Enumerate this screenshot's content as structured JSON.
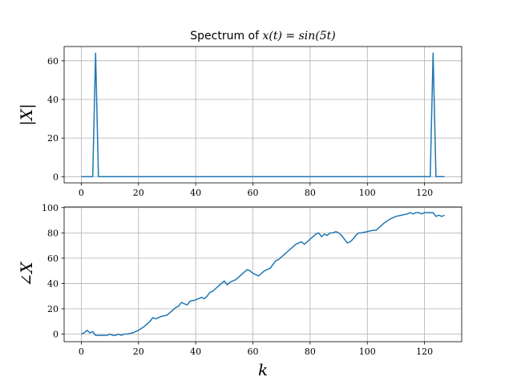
{
  "chart_data": [
    {
      "type": "line",
      "title_prefix": "Spectrum of ",
      "title_math": "x(t) = sin(5t)",
      "ylabel": "|X|",
      "xlabel": "",
      "xlim": [
        -6,
        133
      ],
      "ylim": [
        -3.2,
        67.4
      ],
      "xticks": [
        0,
        20,
        40,
        60,
        80,
        100,
        120
      ],
      "yticks": [
        0,
        20,
        40,
        60
      ],
      "grid": true,
      "series": [
        {
          "color": "#1f77b4",
          "x": [
            0,
            1,
            2,
            3,
            4,
            5,
            6,
            7,
            8,
            121,
            122,
            123,
            124,
            125,
            126,
            127
          ],
          "y": [
            0,
            0,
            0,
            0,
            0,
            64,
            0,
            0,
            0,
            0,
            0,
            64,
            0,
            0,
            0,
            0
          ]
        }
      ]
    },
    {
      "type": "line",
      "title": "",
      "ylabel": "∠X",
      "xlabel": "k",
      "xlim": [
        -6,
        133
      ],
      "ylim": [
        -6,
        100.5
      ],
      "xticks": [
        0,
        20,
        40,
        60,
        80,
        100,
        120
      ],
      "yticks": [
        0,
        20,
        40,
        60,
        80,
        100
      ],
      "grid": true,
      "series": [
        {
          "color": "#1f77b4",
          "x": [
            0,
            1,
            2,
            3,
            4,
            5,
            6,
            7,
            8,
            9,
            10,
            11,
            12,
            13,
            14,
            15,
            16,
            18,
            20,
            22,
            24,
            25,
            26,
            28,
            30,
            31,
            32,
            33,
            34,
            35,
            36,
            37,
            38,
            40,
            41,
            42,
            43,
            44,
            45,
            46,
            47,
            48,
            49,
            50,
            51,
            52,
            54,
            55,
            56,
            57,
            58,
            59,
            60,
            62,
            64,
            65,
            66,
            67,
            68,
            69,
            70,
            71,
            72,
            73,
            74,
            75,
            76,
            77,
            78,
            79,
            80,
            81,
            82,
            83,
            84,
            85,
            86,
            87,
            88,
            89,
            90,
            91,
            92,
            93,
            94,
            95,
            96,
            97,
            98,
            100,
            102,
            103,
            104,
            106,
            108,
            110,
            112,
            114,
            115,
            116,
            117,
            118,
            119,
            120,
            121,
            122,
            123,
            124,
            125,
            126,
            127
          ],
          "y": [
            0,
            1,
            3,
            1,
            2,
            -1,
            -1,
            -1,
            -1,
            -1,
            0,
            -1,
            -1,
            0,
            -1,
            0,
            0,
            1,
            3,
            6,
            10,
            13,
            12,
            14,
            15,
            17,
            19,
            21,
            22,
            25,
            24,
            23,
            26,
            27,
            28,
            29,
            28,
            30,
            33,
            34,
            36,
            38,
            40,
            42,
            39,
            41,
            43,
            45,
            47,
            49,
            51,
            50,
            48,
            46,
            50,
            51,
            52,
            55,
            58,
            59,
            61,
            63,
            65,
            67,
            69,
            71,
            72,
            73,
            71,
            73,
            75,
            77,
            79,
            80,
            77,
            79,
            78,
            80,
            80,
            81,
            80,
            78,
            75,
            72,
            73,
            75,
            78,
            80,
            80,
            81,
            82,
            82,
            84,
            88,
            91,
            93,
            94,
            95,
            96,
            95,
            96,
            96,
            95,
            96,
            96,
            96,
            96,
            93,
            94,
            93,
            94
          ]
        }
      ]
    }
  ]
}
